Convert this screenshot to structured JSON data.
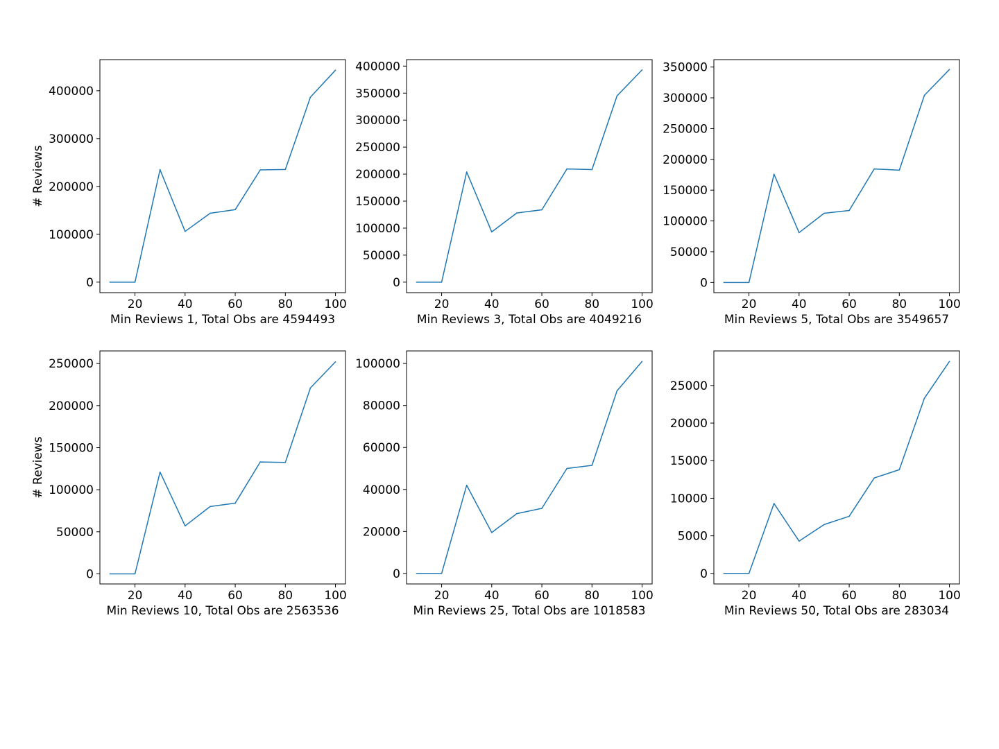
{
  "chart_data": [
    {
      "type": "line",
      "xlabel": "Min Reviews 1, Total Obs are 4594493",
      "ylabel": "# Reviews",
      "x": [
        10,
        20,
        30,
        40,
        50,
        60,
        70,
        80,
        90,
        100
      ],
      "series": [
        {
          "values": [
            0,
            0,
            235000,
            106000,
            144000,
            151500,
            234500,
            235500,
            386500,
            443000
          ]
        }
      ],
      "xlim": [
        6,
        104
      ],
      "ylim": [
        -22000,
        465000
      ],
      "xticks": [
        20,
        40,
        60,
        80,
        100
      ],
      "yticks": [
        0,
        100000,
        200000,
        300000,
        400000
      ],
      "color": "#1f77b4"
    },
    {
      "type": "line",
      "xlabel": "Min Reviews 3, Total Obs are 4049216",
      "ylabel": "",
      "x": [
        10,
        20,
        30,
        40,
        50,
        60,
        70,
        80,
        90,
        100
      ],
      "series": [
        {
          "values": [
            0,
            0,
            204000,
            93000,
            128000,
            134000,
            209500,
            208500,
            345000,
            393000
          ]
        }
      ],
      "xlim": [
        6,
        104
      ],
      "ylim": [
        -19500,
        412000
      ],
      "xticks": [
        20,
        40,
        60,
        80,
        100
      ],
      "yticks": [
        0,
        50000,
        100000,
        150000,
        200000,
        250000,
        300000,
        350000,
        400000
      ],
      "color": "#1f77b4"
    },
    {
      "type": "line",
      "xlabel": "Min Reviews 5, Total Obs are 3549657",
      "ylabel": "",
      "x": [
        10,
        20,
        30,
        40,
        50,
        60,
        70,
        80,
        90,
        100
      ],
      "series": [
        {
          "values": [
            0,
            0,
            176000,
            81000,
            112500,
            117000,
            184500,
            182500,
            304000,
            346000
          ]
        }
      ],
      "xlim": [
        6,
        104
      ],
      "ylim": [
        -16500,
        362000
      ],
      "xticks": [
        20,
        40,
        60,
        80,
        100
      ],
      "yticks": [
        0,
        50000,
        100000,
        150000,
        200000,
        250000,
        300000,
        350000
      ],
      "color": "#1f77b4"
    },
    {
      "type": "line",
      "xlabel": "Min Reviews 10, Total Obs are 2563536",
      "ylabel": "# Reviews",
      "x": [
        10,
        20,
        30,
        40,
        50,
        60,
        70,
        80,
        90,
        100
      ],
      "series": [
        {
          "values": [
            0,
            0,
            121000,
            57000,
            80000,
            84000,
            133000,
            132500,
            221000,
            252000
          ]
        }
      ],
      "xlim": [
        6,
        104
      ],
      "ylim": [
        -12000,
        265000
      ],
      "xticks": [
        20,
        40,
        60,
        80,
        100
      ],
      "yticks": [
        0,
        50000,
        100000,
        150000,
        200000,
        250000
      ],
      "color": "#1f77b4"
    },
    {
      "type": "line",
      "xlabel": "Min Reviews 25, Total Obs are 1018583",
      "ylabel": "",
      "x": [
        10,
        20,
        30,
        40,
        50,
        60,
        70,
        80,
        90,
        100
      ],
      "series": [
        {
          "values": [
            0,
            0,
            42000,
            19500,
            28500,
            31000,
            50000,
            51500,
            87000,
            101000
          ]
        }
      ],
      "xlim": [
        6,
        104
      ],
      "ylim": [
        -5000,
        106000
      ],
      "xticks": [
        20,
        40,
        60,
        80,
        100
      ],
      "yticks": [
        0,
        20000,
        40000,
        60000,
        80000,
        100000
      ],
      "color": "#1f77b4"
    },
    {
      "type": "line",
      "xlabel": "Min Reviews 50, Total Obs are 283034",
      "ylabel": "",
      "x": [
        10,
        20,
        30,
        40,
        50,
        60,
        70,
        80,
        90,
        100
      ],
      "series": [
        {
          "values": [
            0,
            0,
            9300,
            4300,
            6500,
            7600,
            12700,
            13800,
            23300,
            28200
          ]
        }
      ],
      "xlim": [
        6,
        104
      ],
      "ylim": [
        -1400,
        29600
      ],
      "xticks": [
        20,
        40,
        60,
        80,
        100
      ],
      "yticks": [
        0,
        5000,
        10000,
        15000,
        20000,
        25000
      ],
      "color": "#1f77b4"
    }
  ]
}
